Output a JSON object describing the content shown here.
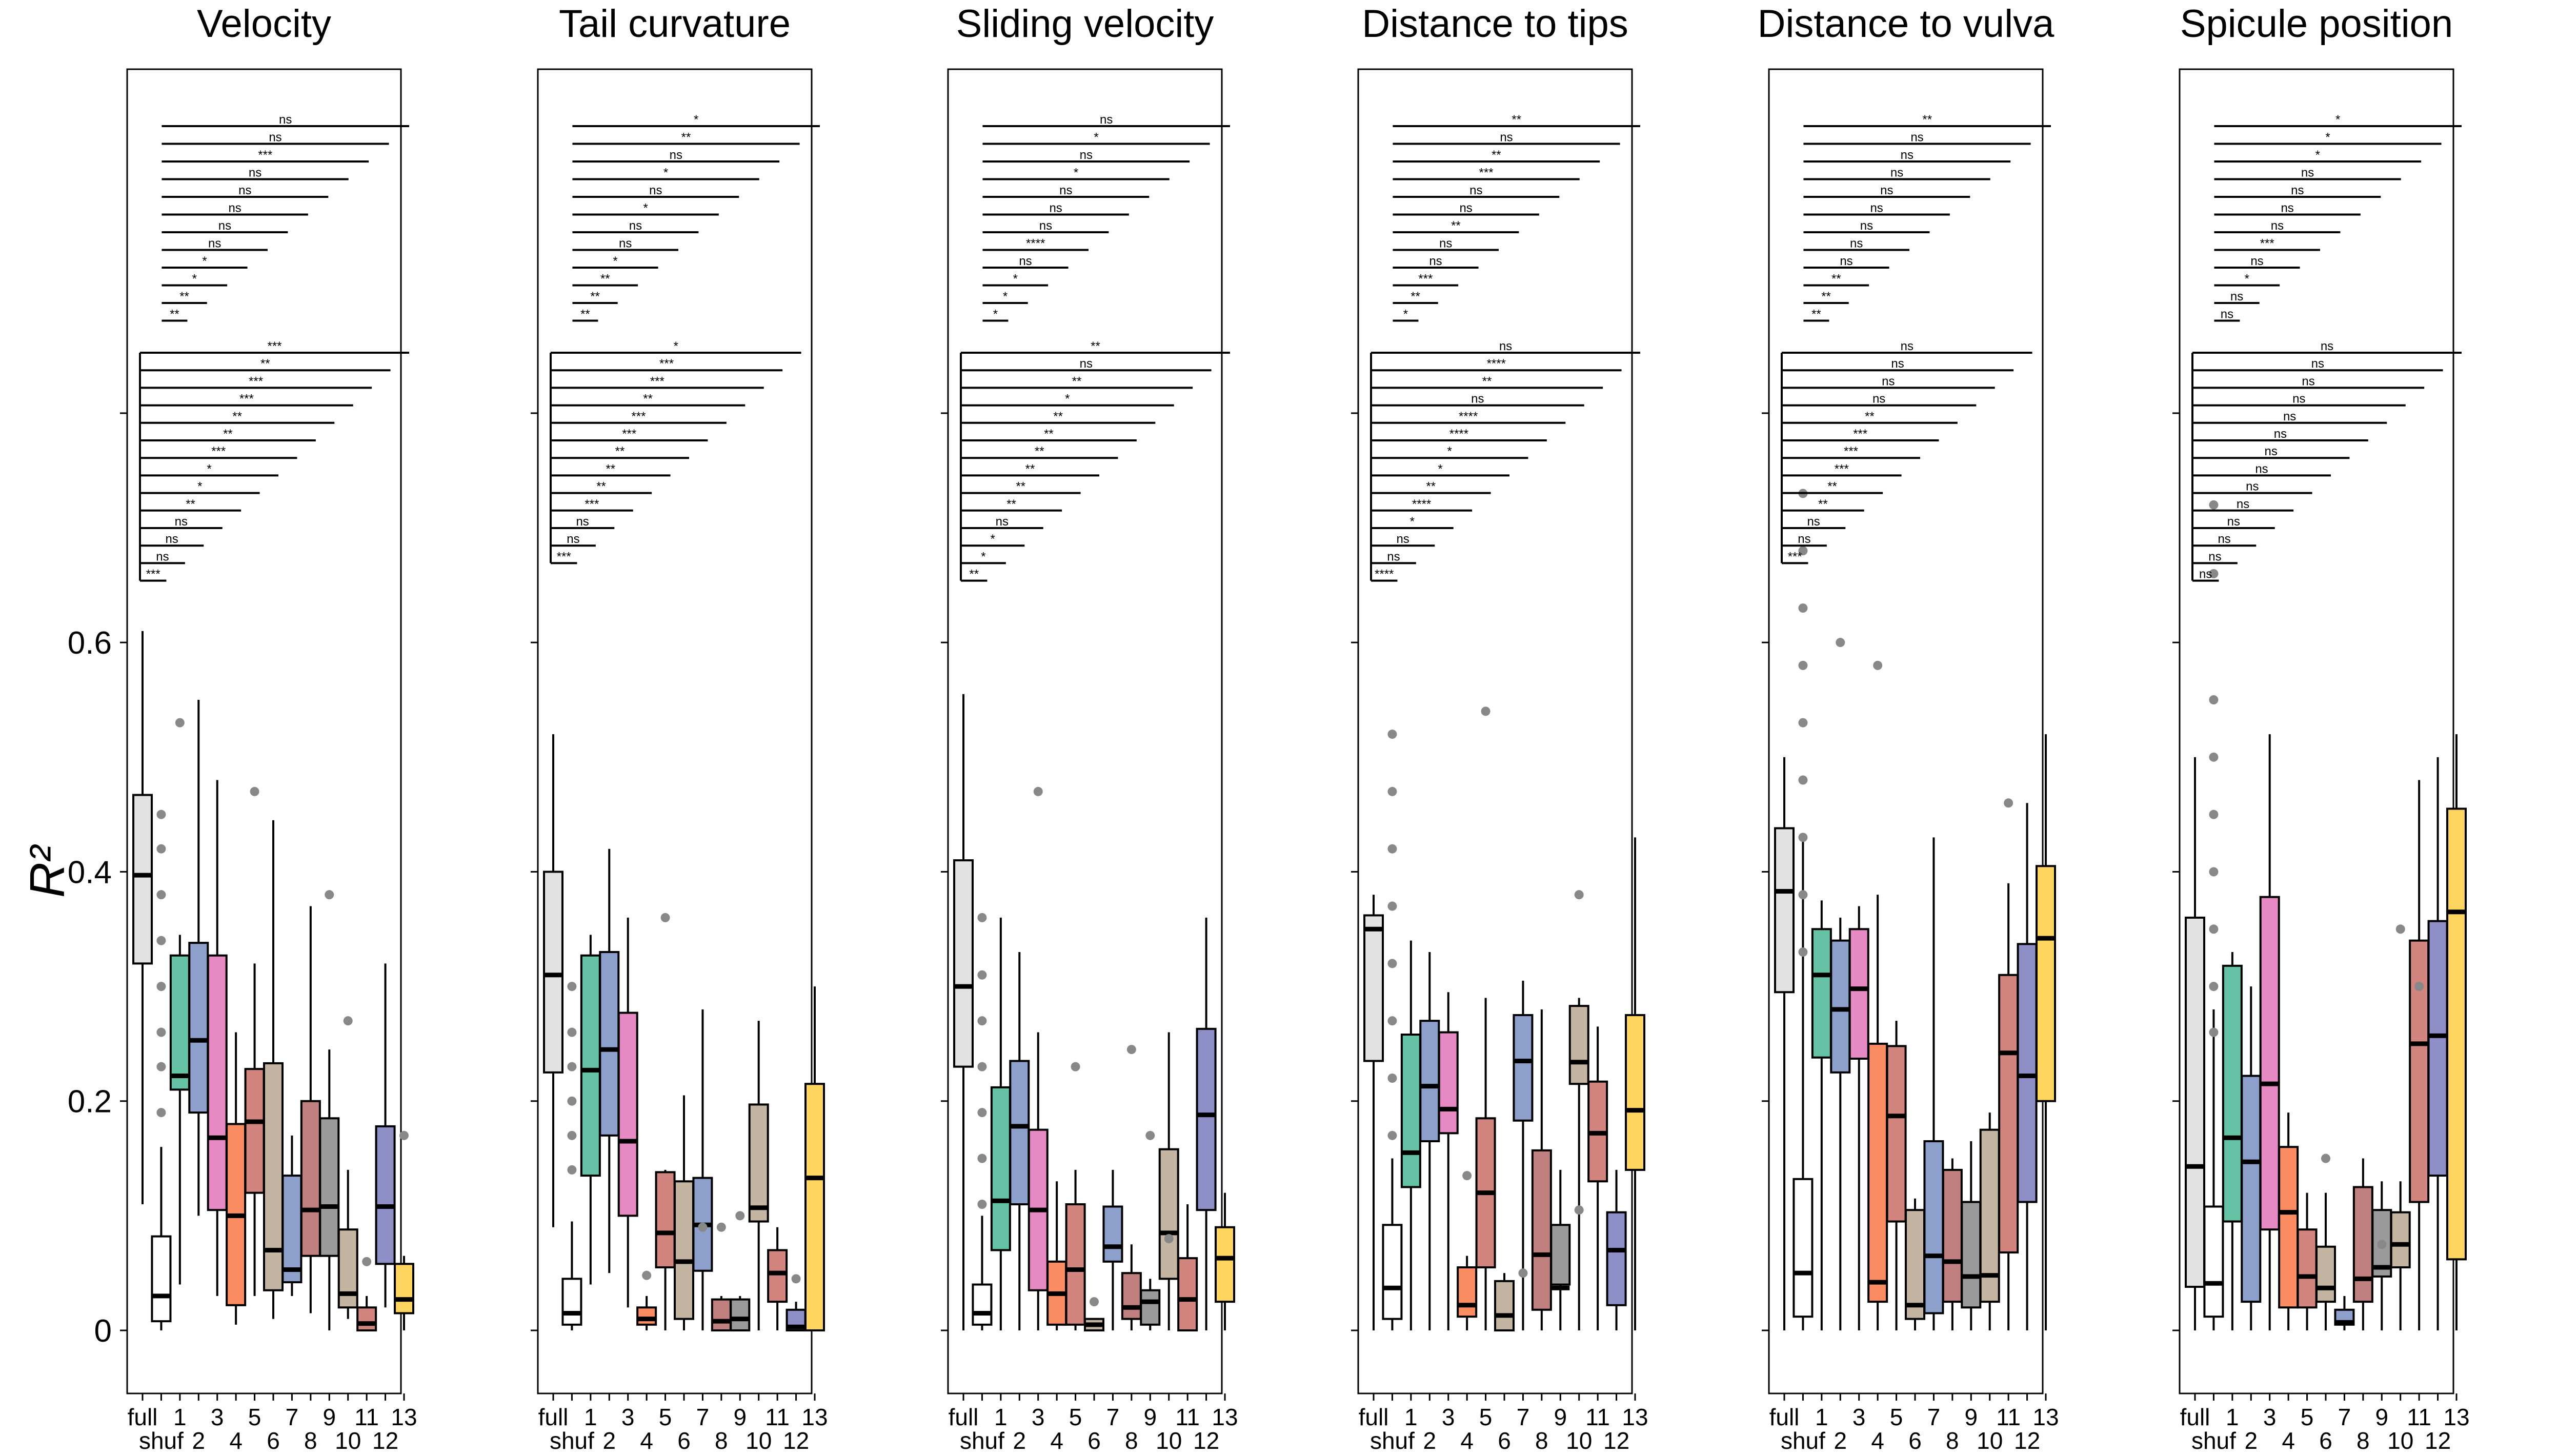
{
  "chart_data": {
    "type": "box",
    "ylabel": "R²",
    "yticks": [
      "0",
      "0.2",
      "0.4",
      "0.6"
    ],
    "ylim": [
      -0.055,
      1.1
    ],
    "x_top_labels": [
      "full",
      "1",
      "3",
      "5",
      "7",
      "9",
      "11",
      "13"
    ],
    "x_bottom_labels": [
      "shuf",
      "2",
      "4",
      "6",
      "8",
      "10",
      "12"
    ],
    "box_colors": [
      "#e2e2e2",
      "#ffffff",
      "#66c2a5",
      "#8da0cb",
      "#e78ac3",
      "#fc8d62",
      "#d2847e",
      "#c4b5a3",
      "#8da0cb",
      "#c08080",
      "#9a9a9a",
      "#c4b5a3",
      "#d2847e",
      "#8f8fc8",
      "#fed55f"
    ],
    "panels": [
      {
        "title": "Velocity",
        "boxes": [
          [
            0.11,
            0.32,
            0.397,
            0.467,
            0.61
          ],
          [
            0.0,
            0.008,
            0.03,
            0.082,
            0.16
          ],
          [
            0.04,
            0.21,
            0.222,
            0.327,
            0.345
          ],
          [
            0.1,
            0.19,
            0.253,
            0.338,
            0.55
          ],
          [
            0.03,
            0.105,
            0.168,
            0.327,
            0.48
          ],
          [
            0.005,
            0.022,
            0.1,
            0.18,
            0.26
          ],
          [
            0.03,
            0.12,
            0.182,
            0.228,
            0.32
          ],
          [
            0.01,
            0.035,
            0.07,
            0.233,
            0.445
          ],
          [
            0.03,
            0.042,
            0.053,
            0.135,
            0.17
          ],
          [
            0.015,
            0.065,
            0.105,
            0.2,
            0.37
          ],
          [
            0.0,
            0.065,
            0.108,
            0.185,
            0.245
          ],
          [
            0.01,
            0.02,
            0.032,
            0.088,
            0.14
          ],
          [
            0.0,
            0.0,
            0.006,
            0.02,
            0.03
          ],
          [
            0.02,
            0.058,
            0.108,
            0.178,
            0.32
          ],
          [
            0.0,
            0.015,
            0.027,
            0.058,
            0.065
          ]
        ],
        "outliers": [
          [
            1,
            0.19
          ],
          [
            1,
            0.23
          ],
          [
            1,
            0.26
          ],
          [
            1,
            0.3
          ],
          [
            1,
            0.34
          ],
          [
            1,
            0.38
          ],
          [
            1,
            0.42
          ],
          [
            1,
            0.45
          ],
          [
            2,
            0.53
          ],
          [
            6,
            0.47
          ],
          [
            10,
            0.38
          ],
          [
            11,
            0.27
          ],
          [
            12,
            0.06
          ],
          [
            14,
            0.17
          ]
        ],
        "upper_sig": [
          "ns",
          "ns",
          "***",
          "ns",
          "ns",
          "ns",
          "ns",
          "ns",
          "*",
          "*",
          "**",
          "**"
        ],
        "lower_sig": [
          "***",
          "**",
          "***",
          "***",
          "**",
          "**",
          "***",
          "*",
          "*",
          "**",
          "ns",
          "ns",
          "ns",
          "***"
        ]
      },
      {
        "title": "Tail curvature",
        "boxes": [
          [
            0.09,
            0.225,
            0.31,
            0.4,
            0.52
          ],
          [
            0.0,
            0.005,
            0.015,
            0.045,
            0.095
          ],
          [
            0.04,
            0.135,
            0.227,
            0.327,
            0.345
          ],
          [
            0.05,
            0.17,
            0.245,
            0.33,
            0.42
          ],
          [
            0.02,
            0.1,
            0.165,
            0.277,
            0.36
          ],
          [
            0.0,
            0.005,
            0.01,
            0.02,
            0.03
          ],
          [
            0.0,
            0.055,
            0.085,
            0.138,
            0.14
          ],
          [
            0.0,
            0.01,
            0.06,
            0.13,
            0.205
          ],
          [
            0.0,
            0.052,
            0.092,
            0.133,
            0.28
          ],
          [
            0.0,
            0.0,
            0.008,
            0.027,
            0.03
          ],
          [
            0.0,
            0.0,
            0.01,
            0.027,
            0.03
          ],
          [
            0.0,
            0.095,
            0.107,
            0.197,
            0.27
          ],
          [
            0.0,
            0.025,
            0.05,
            0.07,
            0.09
          ],
          [
            0.0,
            0.0,
            0.003,
            0.018,
            0.025
          ],
          [
            0.0,
            0.0,
            0.133,
            0.215,
            0.3
          ]
        ],
        "outliers": [
          [
            1,
            0.14
          ],
          [
            1,
            0.17
          ],
          [
            1,
            0.2
          ],
          [
            1,
            0.23
          ],
          [
            1,
            0.26
          ],
          [
            1,
            0.3
          ],
          [
            5,
            0.048
          ],
          [
            6,
            0.36
          ],
          [
            8,
            0.09
          ],
          [
            9,
            0.09
          ],
          [
            10,
            0.1
          ],
          [
            13,
            0.045
          ]
        ],
        "upper_sig": [
          "*",
          "**",
          "ns",
          "*",
          "ns",
          "*",
          "ns",
          "ns",
          "*",
          "**",
          "**",
          "**"
        ],
        "lower_sig": [
          "*",
          "***",
          "***",
          "**",
          "***",
          "***",
          "**",
          "**",
          "**",
          "***",
          "ns",
          "ns",
          "***"
        ]
      },
      {
        "title": "Sliding velocity",
        "boxes": [
          [
            0.0,
            0.23,
            0.3,
            0.41,
            0.555
          ],
          [
            0.0,
            0.005,
            0.015,
            0.04,
            0.1
          ],
          [
            0.0,
            0.07,
            0.113,
            0.212,
            0.36
          ],
          [
            0.0,
            0.11,
            0.178,
            0.235,
            0.33
          ],
          [
            0.0,
            0.035,
            0.105,
            0.175,
            0.26
          ],
          [
            0.0,
            0.005,
            0.032,
            0.06,
            0.13
          ],
          [
            0.0,
            0.005,
            0.053,
            0.11,
            0.14
          ],
          [
            0.0,
            0.0,
            0.005,
            0.01,
            0.01
          ],
          [
            0.0,
            0.06,
            0.073,
            0.108,
            0.14
          ],
          [
            0.0,
            0.01,
            0.02,
            0.05,
            0.075
          ],
          [
            0.0,
            0.005,
            0.025,
            0.035,
            0.045
          ],
          [
            0.0,
            0.045,
            0.085,
            0.158,
            0.26
          ],
          [
            0.0,
            0.0,
            0.027,
            0.063,
            0.11
          ],
          [
            0.0,
            0.105,
            0.188,
            0.263,
            0.36
          ],
          [
            0.0,
            0.025,
            0.063,
            0.09,
            0.12
          ]
        ],
        "outliers": [
          [
            1,
            0.11
          ],
          [
            1,
            0.15
          ],
          [
            1,
            0.19
          ],
          [
            1,
            0.23
          ],
          [
            1,
            0.27
          ],
          [
            1,
            0.31
          ],
          [
            1,
            0.36
          ],
          [
            4,
            0.47
          ],
          [
            6,
            0.23
          ],
          [
            7,
            0.025
          ],
          [
            9,
            0.245
          ],
          [
            10,
            0.17
          ],
          [
            11,
            0.08
          ]
        ],
        "upper_sig": [
          "ns",
          "*",
          "ns",
          "*",
          "ns",
          "ns",
          "ns",
          "****",
          "ns",
          "*",
          "*",
          "*"
        ],
        "lower_sig": [
          "**",
          "ns",
          "**",
          "*",
          "**",
          "**",
          "**",
          "**",
          "**",
          "**",
          "ns",
          "*",
          "*",
          "**"
        ]
      },
      {
        "title": "Distance to tips",
        "boxes": [
          [
            0.0,
            0.235,
            0.35,
            0.362,
            0.38
          ],
          [
            0.0,
            0.01,
            0.037,
            0.092,
            0.15
          ],
          [
            0.0,
            0.125,
            0.155,
            0.258,
            0.34
          ],
          [
            0.0,
            0.165,
            0.213,
            0.27,
            0.33
          ],
          [
            0.0,
            0.172,
            0.193,
            0.26,
            0.295
          ],
          [
            0.0,
            0.012,
            0.022,
            0.055,
            0.065
          ],
          [
            0.0,
            0.055,
            0.12,
            0.185,
            0.29
          ],
          [
            0.0,
            0.0,
            0.013,
            0.043,
            0.05
          ],
          [
            0.0,
            0.183,
            0.235,
            0.275,
            0.305
          ],
          [
            0.0,
            0.018,
            0.066,
            0.157,
            0.28
          ],
          [
            0.0,
            0.04,
            0.037,
            0.092,
            0.14
          ],
          [
            0.0,
            0.215,
            0.234,
            0.283,
            0.29
          ],
          [
            0.0,
            0.13,
            0.172,
            0.217,
            0.265
          ],
          [
            0.0,
            0.022,
            0.07,
            0.103,
            0.14
          ],
          [
            0.0,
            0.14,
            0.192,
            0.275,
            0.43
          ]
        ],
        "outliers": [
          [
            1,
            0.17
          ],
          [
            1,
            0.22
          ],
          [
            1,
            0.27
          ],
          [
            1,
            0.32
          ],
          [
            1,
            0.37
          ],
          [
            1,
            0.42
          ],
          [
            1,
            0.47
          ],
          [
            1,
            0.52
          ],
          [
            5,
            0.135
          ],
          [
            6,
            0.54
          ],
          [
            8,
            0.05
          ],
          [
            11,
            0.105
          ],
          [
            11,
            0.38
          ]
        ],
        "upper_sig": [
          "**",
          "ns",
          "**",
          "***",
          "ns",
          "ns",
          "**",
          "ns",
          "ns",
          "***",
          "**",
          "*"
        ],
        "lower_sig": [
          "ns",
          "****",
          "**",
          "ns",
          "****",
          "****",
          "*",
          "*",
          "**",
          "****",
          "*",
          "ns",
          "ns",
          "****"
        ]
      },
      {
        "title": "Distance to vulva",
        "boxes": [
          [
            0.0,
            0.295,
            0.383,
            0.438,
            0.5
          ],
          [
            0.0,
            0.012,
            0.05,
            0.132,
            0.43
          ],
          [
            0.0,
            0.238,
            0.31,
            0.35,
            0.375
          ],
          [
            0.0,
            0.225,
            0.28,
            0.34,
            0.36
          ],
          [
            0.0,
            0.237,
            0.298,
            0.35,
            0.37
          ],
          [
            0.0,
            0.025,
            0.042,
            0.25,
            0.38
          ],
          [
            0.0,
            0.095,
            0.187,
            0.248,
            0.27
          ],
          [
            0.0,
            0.01,
            0.022,
            0.105,
            0.115
          ],
          [
            0.0,
            0.015,
            0.065,
            0.165,
            0.43
          ],
          [
            0.0,
            0.025,
            0.06,
            0.14,
            0.15
          ],
          [
            0.0,
            0.02,
            0.047,
            0.112,
            0.165
          ],
          [
            0.0,
            0.025,
            0.048,
            0.175,
            0.19
          ],
          [
            0.0,
            0.068,
            0.242,
            0.31,
            0.39
          ],
          [
            0.0,
            0.112,
            0.222,
            0.337,
            0.46
          ],
          [
            0.0,
            0.2,
            0.342,
            0.405,
            0.52
          ]
        ],
        "outliers": [
          [
            1,
            0.33
          ],
          [
            1,
            0.38
          ],
          [
            1,
            0.43
          ],
          [
            1,
            0.48
          ],
          [
            1,
            0.53
          ],
          [
            1,
            0.58
          ],
          [
            1,
            0.63
          ],
          [
            1,
            0.68
          ],
          [
            1,
            0.73
          ],
          [
            3,
            0.6
          ],
          [
            5,
            0.58
          ],
          [
            12,
            0.46
          ]
        ],
        "upper_sig": [
          "**",
          "ns",
          "ns",
          "ns",
          "ns",
          "ns",
          "ns",
          "ns",
          "ns",
          "**",
          "**",
          "**"
        ],
        "lower_sig": [
          "ns",
          "ns",
          "ns",
          "ns",
          "**",
          "***",
          "***",
          "***",
          "**",
          "**",
          "ns",
          "ns",
          "***"
        ]
      },
      {
        "title": "Spicule position",
        "boxes": [
          [
            0.0,
            0.038,
            0.143,
            0.36,
            0.5
          ],
          [
            0.0,
            0.012,
            0.041,
            0.108,
            0.28
          ],
          [
            0.0,
            0.095,
            0.168,
            0.318,
            0.33
          ],
          [
            0.0,
            0.025,
            0.147,
            0.222,
            0.3
          ],
          [
            0.0,
            0.088,
            0.215,
            0.378,
            0.52
          ],
          [
            0.0,
            0.02,
            0.103,
            0.16,
            0.19
          ],
          [
            0.0,
            0.02,
            0.047,
            0.088,
            0.12
          ],
          [
            0.0,
            0.025,
            0.037,
            0.073,
            0.12
          ],
          [
            0.0,
            0.005,
            0.007,
            0.018,
            0.03
          ],
          [
            0.0,
            0.025,
            0.045,
            0.125,
            0.15
          ],
          [
            0.0,
            0.047,
            0.055,
            0.105,
            0.13
          ],
          [
            0.0,
            0.055,
            0.075,
            0.103,
            0.13
          ],
          [
            0.0,
            0.112,
            0.25,
            0.34,
            0.48
          ],
          [
            0.0,
            0.135,
            0.257,
            0.357,
            0.5
          ],
          [
            0.0,
            0.062,
            0.365,
            0.455,
            0.52
          ]
        ],
        "outliers": [
          [
            1,
            0.26
          ],
          [
            1,
            0.3
          ],
          [
            1,
            0.35
          ],
          [
            1,
            0.4
          ],
          [
            1,
            0.45
          ],
          [
            1,
            0.5
          ],
          [
            1,
            0.55
          ],
          [
            1,
            0.66
          ],
          [
            1,
            0.72
          ],
          [
            7,
            0.15
          ],
          [
            10,
            0.075
          ],
          [
            11,
            0.35
          ],
          [
            12,
            0.3
          ]
        ],
        "upper_sig": [
          "*",
          "*",
          "*",
          "ns",
          "ns",
          "ns",
          "ns",
          "***",
          "ns",
          "*",
          "ns",
          "ns"
        ],
        "lower_sig": [
          "ns",
          "ns",
          "ns",
          "ns",
          "ns",
          "ns",
          "ns",
          "ns",
          "ns",
          "ns",
          "ns",
          "ns",
          "ns",
          "ns"
        ]
      }
    ]
  }
}
